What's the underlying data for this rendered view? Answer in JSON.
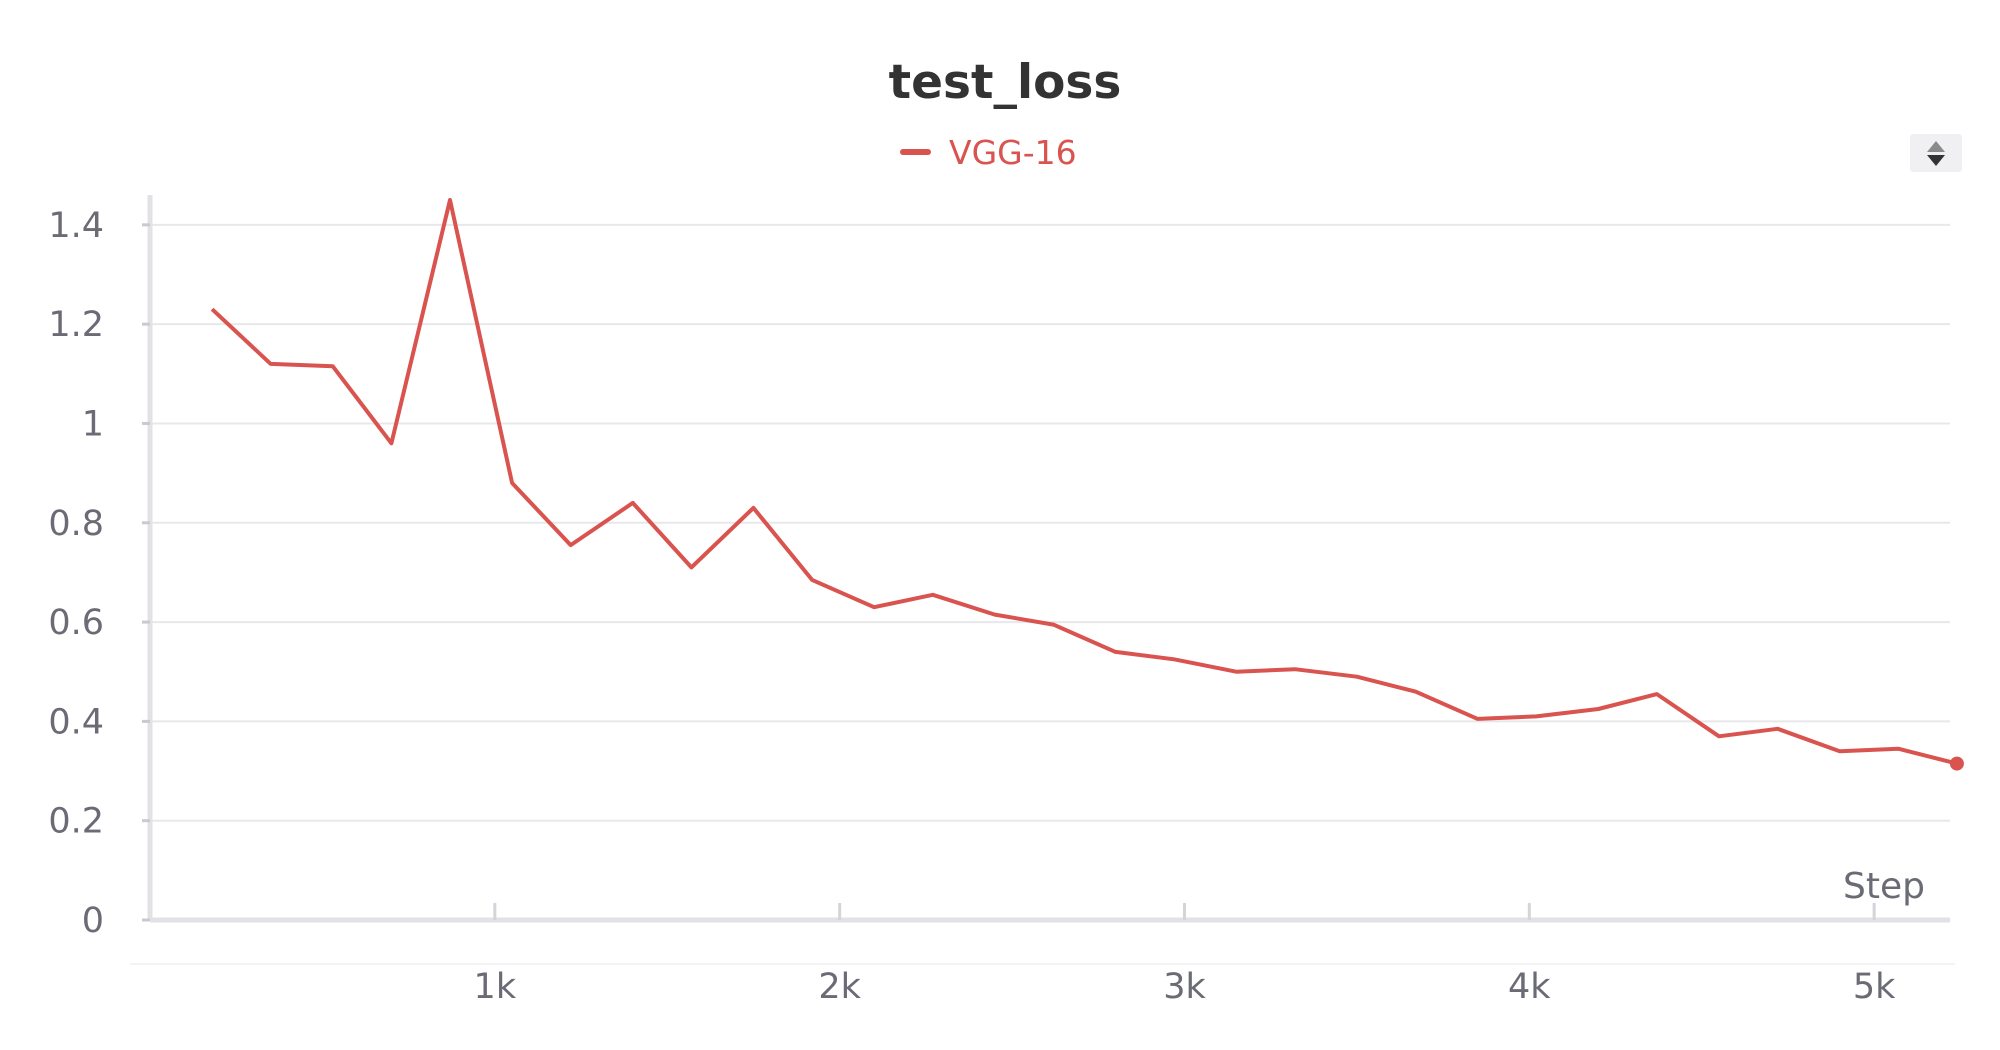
{
  "chart_data": {
    "type": "line",
    "title": "test_loss",
    "xlabel": "Step",
    "ylabel": "",
    "xlim": [
      0,
      5220
    ],
    "ylim": [
      0,
      1.45
    ],
    "xticks": [
      1000,
      2000,
      3000,
      4000,
      5000
    ],
    "xtick_labels": [
      "1k",
      "2k",
      "3k",
      "4k",
      "5k"
    ],
    "yticks": [
      0,
      0.2,
      0.4,
      0.6,
      0.8,
      1,
      1.2,
      1.4
    ],
    "ytick_labels": [
      "0",
      "0.2",
      "0.4",
      "0.6",
      "0.8",
      "1",
      "1.2",
      "1.4"
    ],
    "grid": true,
    "legend_position": "top-center",
    "series": [
      {
        "name": "VGG-16",
        "color": "#d9534f",
        "x": [
          180,
          350,
          530,
          700,
          870,
          1050,
          1220,
          1400,
          1570,
          1750,
          1920,
          2100,
          2270,
          2450,
          2620,
          2800,
          2970,
          3150,
          3320,
          3500,
          3670,
          3850,
          4020,
          4200,
          4370,
          4550,
          4720,
          4900,
          5070,
          5240
        ],
        "y": [
          1.23,
          1.12,
          1.115,
          0.96,
          1.45,
          0.88,
          0.755,
          0.84,
          0.71,
          0.83,
          0.685,
          0.63,
          0.655,
          0.615,
          0.595,
          0.54,
          0.525,
          0.5,
          0.505,
          0.49,
          0.46,
          0.405,
          0.41,
          0.425,
          0.455,
          0.37,
          0.385,
          0.34,
          0.345,
          0.315
        ]
      }
    ]
  },
  "ui": {
    "scroll_up_icon": "triangle-up-icon",
    "scroll_down_icon": "triangle-down-icon"
  }
}
